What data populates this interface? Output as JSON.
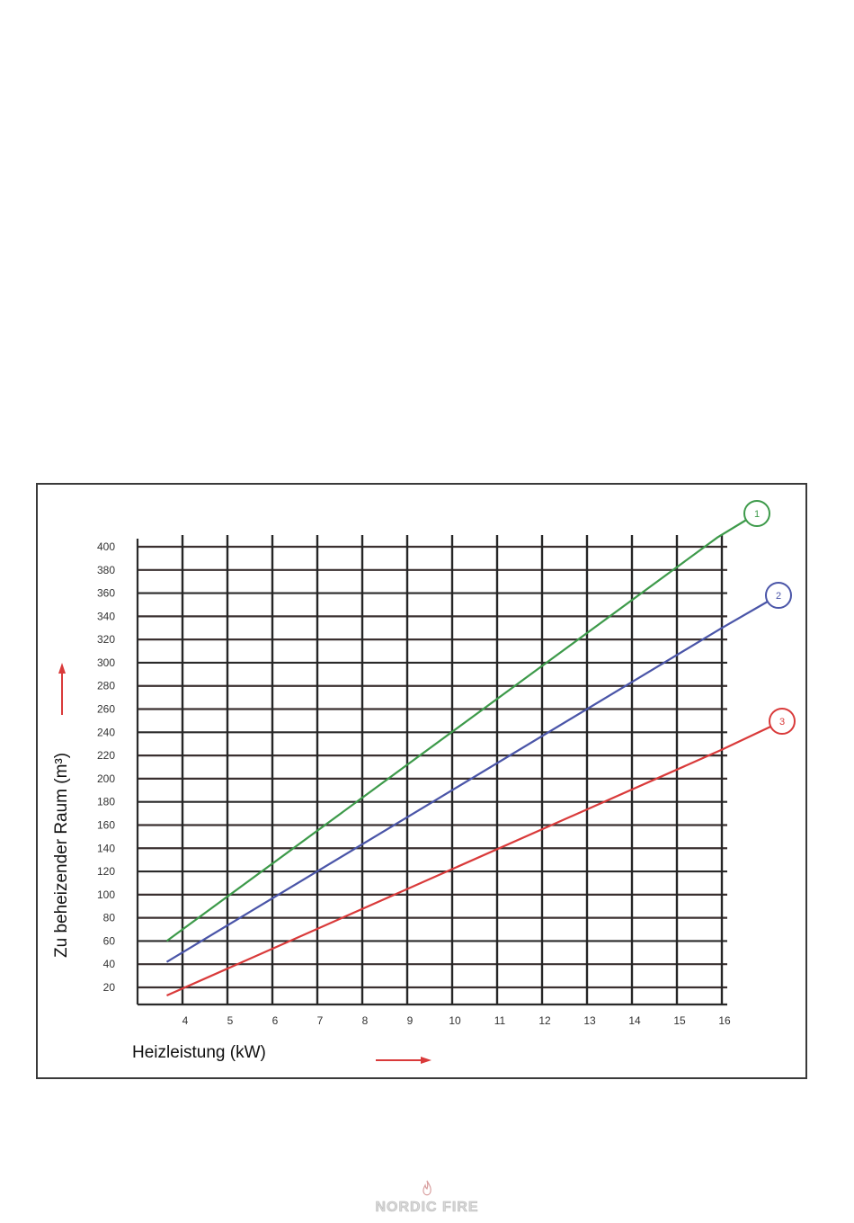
{
  "chart_data": {
    "type": "line",
    "xlabel": "Heizleistung (kW)",
    "ylabel": "Zu beheizender Raum (m³)",
    "x_ticks": [
      "4",
      "5",
      "6",
      "7",
      "8",
      "9",
      "10",
      "11",
      "12",
      "13",
      "14",
      "15",
      "16"
    ],
    "y_ticks": [
      "20",
      "40",
      "60",
      "80",
      "100",
      "120",
      "140",
      "160",
      "180",
      "200",
      "220",
      "240",
      "260",
      "280",
      "300",
      "320",
      "340",
      "360",
      "380",
      "400"
    ],
    "xlim": [
      3.0,
      16.2
    ],
    "ylim": [
      0,
      410
    ],
    "grid": true,
    "series": [
      {
        "name": "1",
        "color": "#3d9a4a",
        "x": [
          3.65,
          15.9
        ],
        "y": [
          60,
          408
        ]
      },
      {
        "name": "2",
        "color": "#4a55a8",
        "x": [
          3.65,
          16.0
        ],
        "y": [
          42,
          330
        ]
      },
      {
        "name": "3",
        "color": "#d93a3a",
        "x": [
          3.65,
          16.0
        ],
        "y": [
          13,
          225
        ]
      }
    ]
  },
  "footer": {
    "brand": "NORDIC FIRE"
  }
}
